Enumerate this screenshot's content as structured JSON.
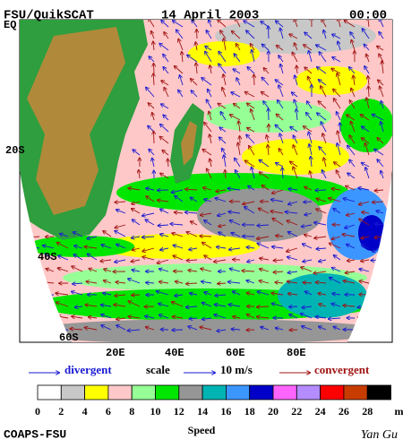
{
  "header": {
    "title": "FSU/QuikSCAT",
    "date": "14 April 2003",
    "time": "00:00"
  },
  "map": {
    "lat_labels": [
      "EQ",
      "20S",
      "40S",
      "60S"
    ],
    "lon_labels": [
      "20E",
      "40E",
      "60E",
      "80E"
    ]
  },
  "legend": {
    "divergent": "divergent",
    "scale": "scale",
    "scale_value": "10 m/s",
    "convergent": "convergent"
  },
  "colorbar": {
    "title": "Speed",
    "unit": "m/s",
    "ticks": [
      0,
      2,
      4,
      6,
      8,
      10,
      12,
      14,
      16,
      18,
      20,
      22,
      24,
      26,
      28
    ],
    "colors": [
      "#ffffff",
      "#c8c8c8",
      "#ffff00",
      "#ffc8c8",
      "#96ff96",
      "#00e600",
      "#969696",
      "#00b4b4",
      "#3c96ff",
      "#0000c8",
      "#ff64ff",
      "#b48cff",
      "#ff0000",
      "#c83c00",
      "#000000"
    ]
  },
  "footer": {
    "credit": "COAPS-FSU",
    "author": "Yan Gu"
  }
}
